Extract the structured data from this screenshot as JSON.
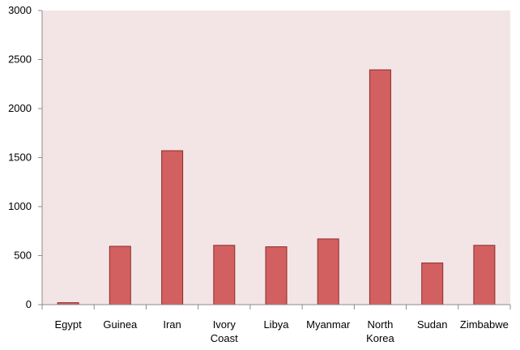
{
  "chart_data": {
    "type": "bar",
    "categories": [
      [
        "Egypt"
      ],
      [
        "Guinea"
      ],
      [
        "Iran"
      ],
      [
        "Ivory",
        "Coast"
      ],
      [
        "Libya"
      ],
      [
        "Myanmar"
      ],
      [
        "North",
        "Korea"
      ],
      [
        "Sudan"
      ],
      [
        "Zimbabwe"
      ]
    ],
    "values": [
      20,
      595,
      1570,
      605,
      590,
      670,
      2395,
      425,
      605
    ],
    "ylim": [
      0,
      3000
    ],
    "yticks": [
      "0",
      "500",
      "1000",
      "1500",
      "2000",
      "2500",
      "3000"
    ],
    "grid": false,
    "legend": "none",
    "colors": {
      "plot_background": "#f3e5e5",
      "bar_fill": "#d36060",
      "bar_stroke": "#8e2a2a",
      "axis": "#8c8c8c"
    }
  }
}
